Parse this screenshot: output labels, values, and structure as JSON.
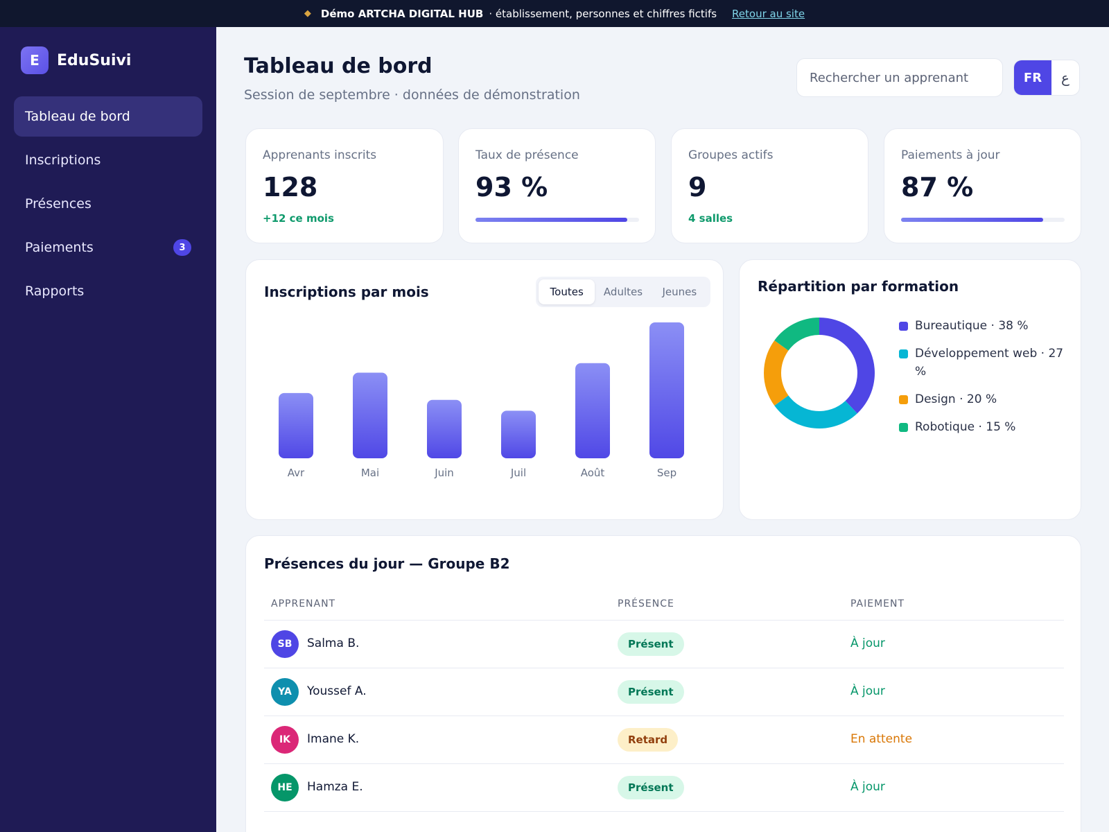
{
  "banner": {
    "icon": "diamond-icon",
    "strong": "Démo ARTCHA DIGITAL HUB",
    "rest": "· établissement, personnes et chiffres fictifs",
    "link": "Retour au site"
  },
  "brand": {
    "logo_letter": "E",
    "name": "EduSuivi"
  },
  "nav": [
    {
      "label": "Tableau de bord",
      "active": true,
      "badge": ""
    },
    {
      "label": "Inscriptions",
      "active": false,
      "badge": ""
    },
    {
      "label": "Présences",
      "active": false,
      "badge": ""
    },
    {
      "label": "Paiements",
      "active": false,
      "badge": "3"
    },
    {
      "label": "Rapports",
      "active": false,
      "badge": ""
    }
  ],
  "header": {
    "title": "Tableau de bord",
    "subtitle": "Session de septembre · données de démonstration",
    "search_placeholder": "Rechercher un apprenant",
    "lang_fr": "FR",
    "lang_ar": "ع"
  },
  "stats": [
    {
      "label": "Apprenants inscrits",
      "value": "128",
      "note": "+12 ce mois"
    },
    {
      "label": "Taux de présence",
      "value": "93 %",
      "progress": 0.93
    },
    {
      "label": "Groupes actifs",
      "value": "9",
      "note": "4 salles"
    },
    {
      "label": "Paiements à jour",
      "value": "87 %",
      "progress": 0.87
    }
  ],
  "colors": {
    "accent": "#4f46e5",
    "bureautique": "#4f46e5",
    "web": "#06b6d4",
    "design": "#f59e0b",
    "robotique": "#10b981"
  },
  "bar_chart": {
    "title": "Inscriptions par mois",
    "filters": [
      "Toutes",
      "Adultes",
      "Jeunes"
    ],
    "active_filter": 0
  },
  "chart_data": [
    {
      "type": "bar",
      "title": "Inscriptions par mois",
      "categories": [
        "Avr",
        "Mai",
        "Juin",
        "Juil",
        "Août",
        "Sep"
      ],
      "values": [
        48,
        63,
        43,
        35,
        70,
        100
      ],
      "ylim": [
        0,
        100
      ]
    },
    {
      "type": "pie",
      "title": "Répartition par formation",
      "labels": [
        "Bureautique",
        "Développement web",
        "Design",
        "Robotique"
      ],
      "values": [
        38,
        27,
        20,
        15
      ],
      "legend_texts": [
        "Bureautique · 38 %",
        "Développement web · 27 %",
        "Design · 20 %",
        "Robotique · 15 %"
      ]
    }
  ],
  "attendance": {
    "title": "Présences du jour — Groupe B2",
    "columns": [
      "APPRENANT",
      "PRÉSENCE",
      "PAIEMENT"
    ],
    "rows": [
      {
        "initials": "SB",
        "name": "Salma B.",
        "presence": "Présent",
        "payment": "À jour",
        "avatar_color": "#4f46e5"
      },
      {
        "initials": "YA",
        "name": "Youssef A.",
        "presence": "Présent",
        "payment": "À jour",
        "avatar_color": "#0e8fae"
      },
      {
        "initials": "IK",
        "name": "Imane K.",
        "presence": "Retard",
        "payment": "En attente",
        "avatar_color": "#db2777"
      },
      {
        "initials": "HE",
        "name": "Hamza E.",
        "presence": "Présent",
        "payment": "À jour",
        "avatar_color": "#059669"
      }
    ]
  }
}
